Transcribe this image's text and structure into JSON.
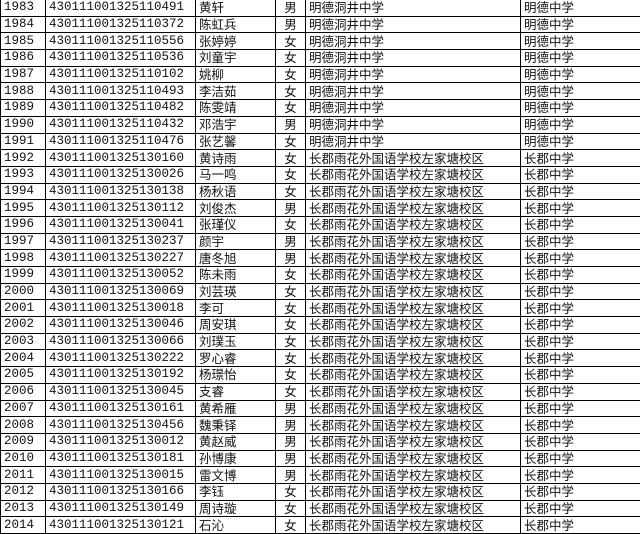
{
  "rows": [
    [
      "1983",
      "430111001325110491",
      "黄轩",
      "男",
      "明德洞井中学",
      "明德中学"
    ],
    [
      "1984",
      "430111001325110372",
      "陈虹兵",
      "男",
      "明德洞井中学",
      "明德中学"
    ],
    [
      "1985",
      "430111001325110556",
      "张婷婷",
      "女",
      "明德洞井中学",
      "明德中学"
    ],
    [
      "1986",
      "430111001325110536",
      "刘童宇",
      "女",
      "明德洞井中学",
      "明德中学"
    ],
    [
      "1987",
      "430111001325110102",
      "姚柳",
      "女",
      "明德洞井中学",
      "明德中学"
    ],
    [
      "1988",
      "430111001325110493",
      "李洁茹",
      "女",
      "明德洞井中学",
      "明德中学"
    ],
    [
      "1989",
      "430111001325110482",
      "陈雯靖",
      "女",
      "明德洞井中学",
      "明德中学"
    ],
    [
      "1990",
      "430111001325110432",
      "邓浩宇",
      "男",
      "明德洞井中学",
      "明德中学"
    ],
    [
      "1991",
      "430111001325110476",
      "张艺馨",
      "女",
      "明德洞井中学",
      "明德中学"
    ],
    [
      "1992",
      "430111001325130160",
      "黄诗雨",
      "女",
      "长郡雨花外国语学校左家塘校区",
      "长郡中学"
    ],
    [
      "1993",
      "430111001325130026",
      "马一鸣",
      "女",
      "长郡雨花外国语学校左家塘校区",
      "长郡中学"
    ],
    [
      "1994",
      "430111001325130138",
      "杨秋语",
      "女",
      "长郡雨花外国语学校左家塘校区",
      "长郡中学"
    ],
    [
      "1995",
      "430111001325130112",
      "刘俊杰",
      "男",
      "长郡雨花外国语学校左家塘校区",
      "长郡中学"
    ],
    [
      "1996",
      "430111001325130041",
      "张瑾仪",
      "女",
      "长郡雨花外国语学校左家塘校区",
      "长郡中学"
    ],
    [
      "1997",
      "430111001325130237",
      "颜宇",
      "男",
      "长郡雨花外国语学校左家塘校区",
      "长郡中学"
    ],
    [
      "1998",
      "430111001325130227",
      "唐冬旭",
      "男",
      "长郡雨花外国语学校左家塘校区",
      "长郡中学"
    ],
    [
      "1999",
      "430111001325130052",
      "陈未雨",
      "女",
      "长郡雨花外国语学校左家塘校区",
      "长郡中学"
    ],
    [
      "2000",
      "430111001325130069",
      "刘芸瑛",
      "女",
      "长郡雨花外国语学校左家塘校区",
      "长郡中学"
    ],
    [
      "2001",
      "430111001325130018",
      "李可",
      "女",
      "长郡雨花外国语学校左家塘校区",
      "长郡中学"
    ],
    [
      "2002",
      "430111001325130046",
      "周安琪",
      "女",
      "长郡雨花外国语学校左家塘校区",
      "长郡中学"
    ],
    [
      "2003",
      "430111001325130066",
      "刘璞玉",
      "女",
      "长郡雨花外国语学校左家塘校区",
      "长郡中学"
    ],
    [
      "2004",
      "430111001325130222",
      "罗心睿",
      "女",
      "长郡雨花外国语学校左家塘校区",
      "长郡中学"
    ],
    [
      "2005",
      "430111001325130192",
      "杨璟怡",
      "女",
      "长郡雨花外国语学校左家塘校区",
      "长郡中学"
    ],
    [
      "2006",
      "430111001325130045",
      "支睿",
      "女",
      "长郡雨花外国语学校左家塘校区",
      "长郡中学"
    ],
    [
      "2007",
      "430111001325130161",
      "黄希雁",
      "男",
      "长郡雨花外国语学校左家塘校区",
      "长郡中学"
    ],
    [
      "2008",
      "430111001325130456",
      "魏秉铎",
      "男",
      "长郡雨花外国语学校左家塘校区",
      "长郡中学"
    ],
    [
      "2009",
      "430111001325130012",
      "黄赵威",
      "男",
      "长郡雨花外国语学校左家塘校区",
      "长郡中学"
    ],
    [
      "2010",
      "430111001325130181",
      "孙博康",
      "男",
      "长郡雨花外国语学校左家塘校区",
      "长郡中学"
    ],
    [
      "2011",
      "430111001325130015",
      "雷文博",
      "男",
      "长郡雨花外国语学校左家塘校区",
      "长郡中学"
    ],
    [
      "2012",
      "430111001325130166",
      "李钰",
      "女",
      "长郡雨花外国语学校左家塘校区",
      "长郡中学"
    ],
    [
      "2013",
      "430111001325130149",
      "周诗璇",
      "女",
      "长郡雨花外国语学校左家塘校区",
      "长郡中学"
    ],
    [
      "2014",
      "430111001325130121",
      "石沁",
      "女",
      "长郡雨花外国语学校左家塘校区",
      "长郡中学"
    ]
  ]
}
